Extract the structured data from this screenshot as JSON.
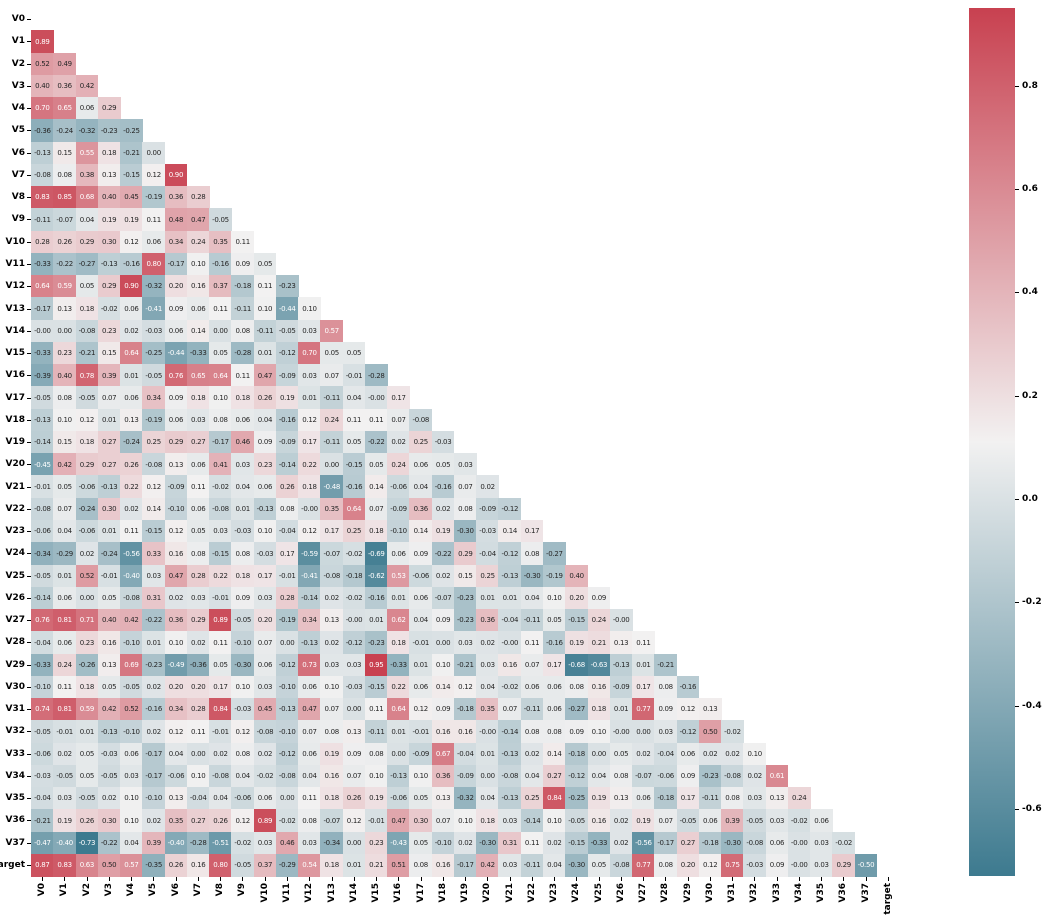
{
  "chart_data": {
    "type": "heatmap",
    "title": "",
    "description": "Lower-triangular correlation matrix heatmap with annotated values and vertical colorbar",
    "labels": [
      "V0",
      "V1",
      "V2",
      "V3",
      "V4",
      "V5",
      "V6",
      "V7",
      "V8",
      "V9",
      "V10",
      "V11",
      "V12",
      "V13",
      "V14",
      "V15",
      "V16",
      "V17",
      "V18",
      "V19",
      "V20",
      "V21",
      "V22",
      "V23",
      "V24",
      "V25",
      "V26",
      "V27",
      "V28",
      "V29",
      "V30",
      "V31",
      "V32",
      "V33",
      "V34",
      "V35",
      "V36",
      "V37",
      "target"
    ],
    "vmin": -0.73,
    "vmax": 0.95,
    "grid": false,
    "legend_position": "right-colorbar",
    "colorbar": {
      "ticks": [
        "0.8",
        "0.6",
        "0.4",
        "0.2",
        "0.0",
        "-0.2",
        "-0.4",
        "-0.6"
      ],
      "tick_values": [
        0.8,
        0.6,
        0.4,
        0.2,
        0.0,
        -0.2,
        -0.4,
        -0.6
      ]
    },
    "colors": {
      "negative_end": "#3d7a8f",
      "center": "#f2f1f1",
      "positive_end": "#c84150",
      "annot_dark": "#262626",
      "annot_light": "#ffffff",
      "background": "#ffffff",
      "tick_color": "#000000"
    },
    "text_white_above": 0.53,
    "text_white_below": -0.4,
    "rows": [
      {
        "label": "V0",
        "values": []
      },
      {
        "label": "V1",
        "values": [
          "0.89"
        ]
      },
      {
        "label": "V2",
        "values": [
          "0.52",
          "0.49"
        ]
      },
      {
        "label": "V3",
        "values": [
          "0.40",
          "0.36",
          "0.42"
        ]
      },
      {
        "label": "V4",
        "values": [
          "0.70",
          "0.65",
          "0.06",
          "0.29"
        ]
      },
      {
        "label": "V5",
        "values": [
          "-0.36",
          "-0.24",
          "-0.32",
          "-0.23",
          "-0.25"
        ]
      },
      {
        "label": "V6",
        "values": [
          "-0.13",
          "0.15",
          "0.55",
          "0.18",
          "-0.21",
          "0.00"
        ]
      },
      {
        "label": "V7",
        "values": [
          "-0.08",
          "0.08",
          "0.38",
          "0.13",
          "-0.15",
          "0.12",
          "0.90"
        ]
      },
      {
        "label": "V8",
        "values": [
          "0.83",
          "0.85",
          "0.68",
          "0.40",
          "0.45",
          "-0.19",
          "0.36",
          "0.28"
        ]
      },
      {
        "label": "V9",
        "values": [
          "-0.11",
          "-0.07",
          "0.04",
          "0.19",
          "0.19",
          "0.11",
          "0.48",
          "0.47",
          "-0.05"
        ]
      },
      {
        "label": "V10",
        "values": [
          "0.28",
          "0.26",
          "0.29",
          "0.30",
          "0.12",
          "0.06",
          "0.34",
          "0.24",
          "0.35",
          "0.11"
        ]
      },
      {
        "label": "V11",
        "values": [
          "-0.33",
          "-0.22",
          "-0.27",
          "-0.13",
          "-0.16",
          "0.80",
          "-0.17",
          "0.10",
          "-0.16",
          "0.09",
          "0.05"
        ]
      },
      {
        "label": "V12",
        "values": [
          "0.64",
          "0.59",
          "0.05",
          "0.29",
          "0.90",
          "-0.32",
          "0.20",
          "0.16",
          "0.37",
          "-0.18",
          "0.11",
          "-0.23"
        ]
      },
      {
        "label": "V13",
        "values": [
          "-0.17",
          "0.13",
          "0.18",
          "-0.02",
          "0.06",
          "-0.41",
          "0.09",
          "0.06",
          "0.11",
          "-0.11",
          "0.10",
          "-0.44",
          "0.10"
        ]
      },
      {
        "label": "V14",
        "values": [
          "-0.00",
          "0.00",
          "-0.08",
          "0.23",
          "0.02",
          "-0.03",
          "0.06",
          "0.14",
          "0.00",
          "0.08",
          "-0.11",
          "-0.05",
          "0.03",
          "0.57"
        ]
      },
      {
        "label": "V15",
        "values": [
          "-0.33",
          "0.23",
          "-0.21",
          "0.15",
          "0.64",
          "-0.25",
          "-0.44",
          "-0.33",
          "0.05",
          "-0.28",
          "0.01",
          "-0.12",
          "0.70",
          "0.05",
          "0.05"
        ]
      },
      {
        "label": "V16",
        "values": [
          "-0.39",
          "0.40",
          "0.78",
          "0.39",
          "0.01",
          "-0.05",
          "0.76",
          "0.65",
          "0.64",
          "0.11",
          "0.47",
          "-0.09",
          "0.03",
          "0.07",
          "-0.01",
          "-0.28"
        ]
      },
      {
        "label": "V17",
        "values": [
          "-0.05",
          "0.08",
          "-0.05",
          "0.07",
          "0.06",
          "0.34",
          "0.09",
          "0.18",
          "0.10",
          "0.18",
          "0.26",
          "0.19",
          "0.01",
          "-0.11",
          "0.04",
          "-0.00",
          "0.17"
        ]
      },
      {
        "label": "V18",
        "values": [
          "-0.13",
          "0.10",
          "0.12",
          "0.01",
          "0.13",
          "-0.19",
          "0.06",
          "0.03",
          "0.08",
          "0.06",
          "0.04",
          "-0.16",
          "0.12",
          "0.24",
          "0.11",
          "0.11",
          "0.07",
          "-0.08"
        ]
      },
      {
        "label": "V19",
        "values": [
          "-0.14",
          "0.15",
          "0.18",
          "0.27",
          "-0.24",
          "0.25",
          "0.29",
          "0.27",
          "-0.17",
          "0.46",
          "0.09",
          "-0.09",
          "0.17",
          "-0.11",
          "0.05",
          "-0.22",
          "0.02",
          "0.25",
          "-0.03"
        ]
      },
      {
        "label": "V20",
        "values": [
          "-0.45",
          "0.42",
          "0.29",
          "0.27",
          "0.26",
          "-0.08",
          "0.13",
          "0.06",
          "0.41",
          "0.03",
          "0.23",
          "-0.14",
          "0.22",
          "0.00",
          "-0.15",
          "0.05",
          "0.24",
          "0.06",
          "0.05",
          "0.03"
        ]
      },
      {
        "label": "V21",
        "values": [
          "-0.01",
          "0.05",
          "-0.06",
          "-0.13",
          "0.22",
          "0.12",
          "-0.09",
          "0.11",
          "-0.02",
          "0.04",
          "0.06",
          "0.26",
          "0.18",
          "-0.48",
          "-0.16",
          "0.14",
          "-0.06",
          "0.04",
          "-0.16",
          "0.07",
          "0.02"
        ]
      },
      {
        "label": "V22",
        "values": [
          "-0.08",
          "0.07",
          "-0.24",
          "0.30",
          "0.02",
          "0.14",
          "-0.10",
          "0.06",
          "-0.08",
          "0.01",
          "-0.13",
          "0.08",
          "-0.00",
          "0.35",
          "0.64",
          "0.07",
          "-0.09",
          "0.36",
          "0.02",
          "0.08",
          "-0.09",
          "-0.12"
        ]
      },
      {
        "label": "V23",
        "values": [
          "-0.06",
          "0.04",
          "-0.06",
          "0.01",
          "0.11",
          "-0.15",
          "0.12",
          "0.05",
          "0.03",
          "-0.03",
          "0.10",
          "-0.04",
          "0.12",
          "0.17",
          "0.25",
          "0.18",
          "-0.10",
          "0.14",
          "0.19",
          "-0.30",
          "-0.03",
          "0.14",
          "0.17"
        ]
      },
      {
        "label": "V24",
        "values": [
          "-0.34",
          "-0.29",
          "0.02",
          "-0.24",
          "-0.56",
          "0.33",
          "0.16",
          "0.08",
          "-0.15",
          "0.08",
          "-0.03",
          "0.17",
          "-0.59",
          "-0.07",
          "-0.02",
          "-0.69",
          "0.06",
          "0.09",
          "-0.22",
          "0.29",
          "-0.04",
          "-0.12",
          "0.08",
          "-0.27"
        ]
      },
      {
        "label": "V25",
        "values": [
          "-0.05",
          "0.01",
          "0.52",
          "-0.01",
          "-0.40",
          "0.03",
          "0.47",
          "0.28",
          "0.22",
          "0.18",
          "0.17",
          "-0.01",
          "-0.41",
          "-0.08",
          "-0.18",
          "-0.62",
          "0.53",
          "-0.06",
          "0.02",
          "0.15",
          "0.25",
          "-0.13",
          "-0.30",
          "-0.19",
          "0.40"
        ]
      },
      {
        "label": "V26",
        "values": [
          "-0.14",
          "0.06",
          "0.00",
          "0.05",
          "-0.08",
          "0.31",
          "0.02",
          "0.03",
          "-0.01",
          "0.09",
          "0.03",
          "0.28",
          "-0.14",
          "0.02",
          "-0.02",
          "-0.16",
          "0.01",
          "0.06",
          "-0.07",
          "-0.23",
          "0.01",
          "0.01",
          "0.04",
          "0.10",
          "0.20",
          "0.09"
        ]
      },
      {
        "label": "V27",
        "values": [
          "0.76",
          "0.81",
          "0.71",
          "0.40",
          "0.42",
          "-0.22",
          "0.36",
          "0.29",
          "0.89",
          "-0.05",
          "0.20",
          "-0.19",
          "0.34",
          "0.13",
          "-0.00",
          "0.01",
          "0.62",
          "0.04",
          "0.09",
          "-0.23",
          "0.36",
          "-0.04",
          "-0.11",
          "0.05",
          "-0.15",
          "0.24",
          "-0.00"
        ]
      },
      {
        "label": "V28",
        "values": [
          "-0.04",
          "0.06",
          "0.23",
          "0.16",
          "-0.10",
          "0.01",
          "0.10",
          "0.02",
          "0.11",
          "-0.10",
          "0.07",
          "0.00",
          "-0.13",
          "0.02",
          "-0.12",
          "-0.23",
          "0.18",
          "-0.01",
          "0.00",
          "0.03",
          "0.02",
          "-0.00",
          "0.11",
          "-0.16",
          "0.19",
          "0.21",
          "0.13",
          "0.11"
        ]
      },
      {
        "label": "V29",
        "values": [
          "-0.33",
          "0.24",
          "-0.26",
          "0.13",
          "0.69",
          "-0.23",
          "-0.49",
          "-0.36",
          "0.05",
          "-0.30",
          "0.06",
          "-0.12",
          "0.73",
          "0.03",
          "0.03",
          "0.95",
          "-0.33",
          "0.01",
          "0.10",
          "-0.21",
          "0.03",
          "0.16",
          "0.07",
          "0.17",
          "-0.68",
          "-0.63",
          "-0.13",
          "0.01",
          "-0.21"
        ]
      },
      {
        "label": "V30",
        "values": [
          "-0.10",
          "0.11",
          "0.18",
          "0.05",
          "-0.05",
          "0.02",
          "0.20",
          "0.20",
          "0.17",
          "0.10",
          "0.03",
          "-0.10",
          "0.06",
          "0.10",
          "-0.03",
          "-0.15",
          "0.22",
          "0.06",
          "0.14",
          "0.12",
          "0.04",
          "-0.02",
          "0.06",
          "0.06",
          "0.08",
          "0.16",
          "-0.09",
          "0.17",
          "0.08",
          "-0.16"
        ]
      },
      {
        "label": "V31",
        "values": [
          "0.74",
          "0.81",
          "0.59",
          "0.42",
          "0.52",
          "-0.16",
          "0.34",
          "0.28",
          "0.84",
          "-0.03",
          "0.45",
          "-0.13",
          "0.47",
          "0.07",
          "0.00",
          "0.11",
          "0.64",
          "0.12",
          "0.09",
          "-0.18",
          "0.35",
          "0.07",
          "-0.11",
          "0.06",
          "-0.27",
          "0.18",
          "0.01",
          "0.77",
          "0.09",
          "0.12",
          "0.13"
        ]
      },
      {
        "label": "V32",
        "values": [
          "-0.05",
          "-0.01",
          "0.01",
          "-0.13",
          "-0.10",
          "0.02",
          "0.12",
          "0.11",
          "-0.01",
          "0.12",
          "-0.08",
          "-0.10",
          "0.07",
          "0.08",
          "0.13",
          "-0.11",
          "0.01",
          "-0.01",
          "0.16",
          "0.16",
          "-0.00",
          "-0.14",
          "0.08",
          "0.08",
          "0.09",
          "0.10",
          "-0.00",
          "0.00",
          "0.03",
          "-0.12",
          "0.50",
          "-0.02"
        ]
      },
      {
        "label": "V33",
        "values": [
          "-0.06",
          "0.02",
          "0.05",
          "-0.03",
          "0.06",
          "-0.17",
          "0.04",
          "0.00",
          "0.02",
          "0.08",
          "0.02",
          "-0.12",
          "0.06",
          "0.19",
          "0.09",
          "0.08",
          "0.00",
          "-0.09",
          "0.67",
          "-0.04",
          "0.01",
          "-0.13",
          "0.02",
          "0.14",
          "-0.18",
          "0.00",
          "0.05",
          "0.02",
          "-0.04",
          "0.06",
          "0.02",
          "0.02",
          "0.10"
        ]
      },
      {
        "label": "V34",
        "values": [
          "-0.03",
          "-0.05",
          "0.05",
          "-0.05",
          "0.03",
          "-0.17",
          "-0.06",
          "0.10",
          "-0.08",
          "0.04",
          "-0.02",
          "-0.08",
          "0.04",
          "0.16",
          "0.07",
          "0.10",
          "-0.13",
          "0.10",
          "0.36",
          "-0.09",
          "0.00",
          "-0.08",
          "0.04",
          "0.27",
          "-0.12",
          "0.04",
          "0.08",
          "-0.07",
          "-0.06",
          "0.09",
          "-0.23",
          "-0.08",
          "0.02",
          "0.61"
        ]
      },
      {
        "label": "V35",
        "values": [
          "-0.04",
          "0.03",
          "-0.05",
          "0.02",
          "0.10",
          "-0.10",
          "0.13",
          "-0.04",
          "0.04",
          "-0.06",
          "0.06",
          "0.00",
          "0.11",
          "0.18",
          "0.26",
          "0.19",
          "-0.06",
          "0.05",
          "0.13",
          "-0.32",
          "0.04",
          "-0.13",
          "0.25",
          "0.84",
          "-0.25",
          "0.19",
          "0.13",
          "0.06",
          "-0.18",
          "0.17",
          "-0.11",
          "0.08",
          "0.03",
          "0.13",
          "0.24"
        ]
      },
      {
        "label": "V36",
        "values": [
          "-0.21",
          "0.19",
          "0.26",
          "0.30",
          "0.10",
          "0.02",
          "0.35",
          "0.27",
          "0.26",
          "0.12",
          "0.89",
          "-0.02",
          "0.08",
          "-0.07",
          "0.12",
          "-0.01",
          "0.47",
          "0.30",
          "0.07",
          "0.10",
          "0.18",
          "0.03",
          "-0.14",
          "0.10",
          "-0.05",
          "0.16",
          "0.02",
          "0.19",
          "0.07",
          "-0.05",
          "0.06",
          "0.39",
          "-0.05",
          "0.03",
          "-0.02",
          "0.06"
        ]
      },
      {
        "label": "V37",
        "values": [
          "-0.47",
          "-0.40",
          "-0.73",
          "-0.22",
          "0.04",
          "0.39",
          "-0.40",
          "-0.28",
          "-0.51",
          "-0.02",
          "0.03",
          "0.46",
          "0.03",
          "-0.34",
          "0.00",
          "0.23",
          "-0.43",
          "0.05",
          "-0.10",
          "0.02",
          "-0.30",
          "0.31",
          "0.11",
          "0.02",
          "-0.15",
          "-0.33",
          "0.02",
          "-0.56",
          "-0.17",
          "0.27",
          "-0.18",
          "-0.30",
          "-0.08",
          "0.06",
          "-0.00",
          "0.03",
          "-0.02"
        ]
      },
      {
        "label": "target",
        "values": [
          "0.87",
          "0.83",
          "0.63",
          "0.50",
          "0.57",
          "-0.35",
          "0.26",
          "0.16",
          "0.80",
          "-0.05",
          "0.37",
          "-0.29",
          "0.54",
          "0.18",
          "0.01",
          "0.21",
          "0.51",
          "0.08",
          "0.16",
          "-0.17",
          "0.42",
          "0.03",
          "-0.11",
          "0.04",
          "-0.30",
          "0.05",
          "-0.08",
          "0.77",
          "0.08",
          "0.20",
          "0.12",
          "0.75",
          "-0.03",
          "0.09",
          "-0.00",
          "0.03",
          "0.29",
          "-0.50"
        ]
      }
    ]
  }
}
